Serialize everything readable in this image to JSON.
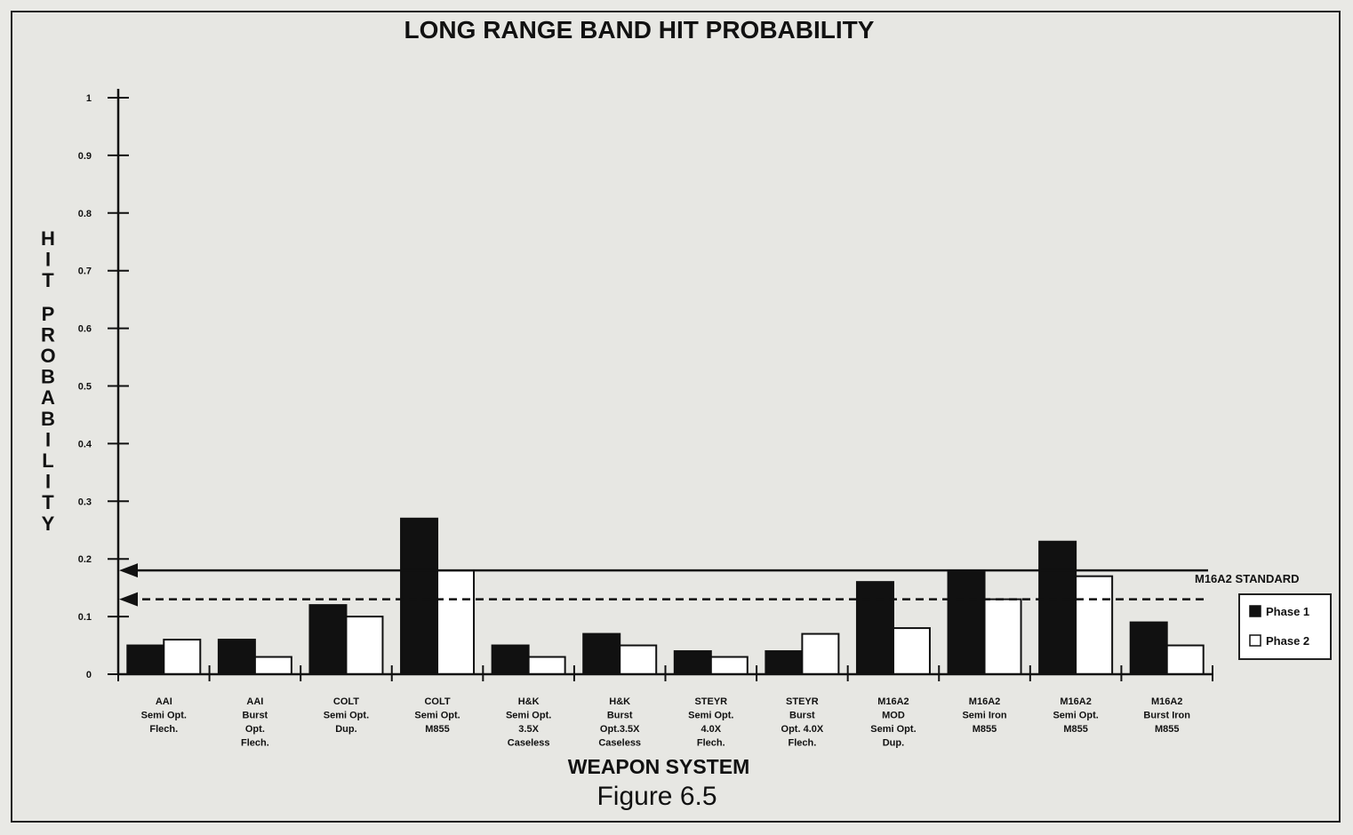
{
  "chart_data": {
    "type": "bar",
    "title": "LONG RANGE BAND HIT PROBABILITY",
    "xlabel": "WEAPON SYSTEM",
    "ylabel": "HIT PROBABILITY",
    "caption": "Figure 6.5",
    "ylim": [
      0,
      1
    ],
    "yticks": [
      "0",
      "0.1",
      "0.2",
      "0.3",
      "0.4",
      "0.5",
      "0.6",
      "0.7",
      "0.8",
      "0.9",
      "1"
    ],
    "categories": [
      [
        "AAI",
        "Semi Opt.",
        "Flech."
      ],
      [
        "AAI",
        "Burst",
        "Opt.",
        "Flech."
      ],
      [
        "COLT",
        "Semi Opt.",
        "Dup."
      ],
      [
        "COLT",
        "Semi Opt.",
        "M855"
      ],
      [
        "H&K",
        "Semi Opt.",
        "3.5X",
        "Caseless"
      ],
      [
        "H&K",
        "Burst",
        "Opt.3.5X",
        "Caseless"
      ],
      [
        "STEYR",
        "Semi Opt.",
        "4.0X",
        "Flech."
      ],
      [
        "STEYR",
        "Burst",
        "Opt. 4.0X",
        "Flech."
      ],
      [
        "M16A2",
        "MOD",
        "Semi Opt.",
        "Dup."
      ],
      [
        "M16A2",
        "Semi Iron",
        "M855"
      ],
      [
        "M16A2",
        "Semi Opt.",
        "M855"
      ],
      [
        "M16A2",
        "Burst Iron",
        "M855"
      ]
    ],
    "series": [
      {
        "name": "Phase 1",
        "color": "#111111",
        "values": [
          0.05,
          0.06,
          0.12,
          0.27,
          0.05,
          0.07,
          0.04,
          0.04,
          0.16,
          0.18,
          0.23,
          0.09
        ]
      },
      {
        "name": "Phase 2",
        "color": "#ffffff",
        "values": [
          0.06,
          0.03,
          0.1,
          0.18,
          0.03,
          0.05,
          0.03,
          0.07,
          0.08,
          0.13,
          0.17,
          0.05
        ]
      }
    ],
    "reference_lines": [
      {
        "label": "M16A2 STANDARD",
        "value": 0.18,
        "style": "solid"
      },
      {
        "label": "",
        "value": 0.13,
        "style": "dashed"
      }
    ],
    "grid": false,
    "legend_position": "right"
  }
}
